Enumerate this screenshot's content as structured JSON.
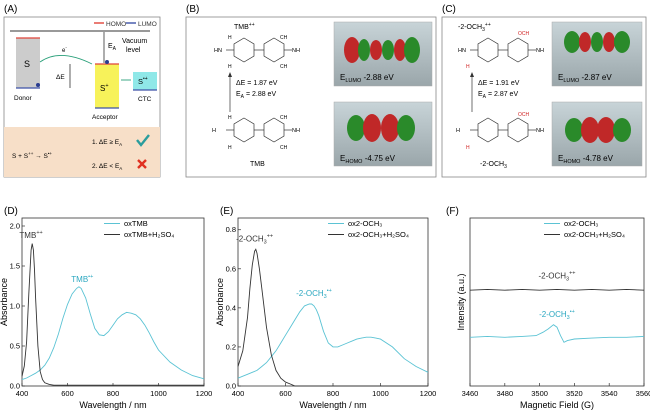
{
  "panels": {
    "A": {
      "label": "(A)",
      "legend": {
        "homo": "HOMO",
        "lumo": "LUMO"
      },
      "colors": {
        "homo": "#e0443a",
        "lumo": "#3d52a8",
        "s_fill": "#cccccc",
        "splus_fill": "#f7f25a",
        "ctc_fill": "#8fe8e8",
        "box_fill": "#f7dfc8",
        "check": "#2a9d9d",
        "cross": "#e03020"
      },
      "ea": "E",
      "ea_sub": "A",
      "vacuum": "Vacuum",
      "level": "level",
      "s": "S",
      "splus": "S",
      "splus_sup": "+",
      "de": "ΔE",
      "e_minus": "e",
      "sdot": "S",
      "sdot_sup": "•+",
      "ctc": "CTC",
      "donor": "Donor",
      "acceptor": "Acceptor",
      "rule1": "1. ΔE ≥ E",
      "rule1_sub": "A",
      "rule2": "2. ΔE < E",
      "rule2_sub": "A",
      "eq_left": "S + S",
      "eq_left_sup": "++",
      "eq_right": "S",
      "eq_right_sup": "•+"
    },
    "B": {
      "label": "(B)",
      "top_mol": "TMB",
      "top_mol_sup": "++",
      "bottom_mol": "TMB",
      "de": "ΔE = 1.87 eV",
      "ea": "E",
      "ea_sub": "A",
      "ea_val": " = 2.88 eV",
      "lumo_e": "E",
      "lumo_sub": "LUMO",
      "lumo_val": " -2.88 eV",
      "homo_e": "E",
      "homo_sub": "HOMO",
      "homo_val": " -4.75 eV",
      "groups": {
        "ch3": "CH",
        "h3c": "H",
        "nh": "NH",
        "nh2": "NH",
        "hn": "HN",
        "h2n": "H"
      }
    },
    "C": {
      "label": "(C)",
      "top_mol": "-2-OCH",
      "top_mol_sup": "++",
      "bottom_mol": "-2-OCH",
      "de": "ΔE = 1.91 eV",
      "ea": "E",
      "ea_sub": "A",
      "ea_val": " = 2.87 eV",
      "lumo_e": "E",
      "lumo_sub": "LUMO",
      "lumo_val": " -2.87 eV",
      "homo_e": "E",
      "homo_sub": "HOMO",
      "homo_val": " -4.78 eV",
      "groups": {
        "och3": "OCH",
        "h3co": "H",
        "ch3": "CH",
        "nh": "NH",
        "nh2": "NH",
        "hn": "HN",
        "h2n": "H"
      }
    }
  },
  "chart_data": [
    {
      "panel": "(D)",
      "type": "line",
      "xlabel": "Wavelength / nm",
      "ylabel": "Absorbance",
      "xlim": [
        400,
        1200
      ],
      "ylim": [
        0,
        2.1
      ],
      "xticks": [
        400,
        600,
        800,
        1000,
        1200
      ],
      "yticks": [
        0.0,
        0.5,
        1.0,
        1.5,
        2.0
      ],
      "ytick_labels": [
        "0.0",
        "0.5",
        "1.0",
        "1.5",
        "2.0"
      ],
      "legend": "top-right",
      "series": [
        {
          "name": "oxTMB",
          "color": "#5bc3d4",
          "x": [
            400,
            420,
            440,
            460,
            480,
            500,
            520,
            540,
            560,
            580,
            600,
            620,
            640,
            650,
            660,
            680,
            700,
            720,
            740,
            760,
            780,
            800,
            820,
            840,
            860,
            880,
            900,
            920,
            940,
            960,
            980,
            1000,
            1050,
            1100,
            1150,
            1200
          ],
          "y": [
            0.08,
            0.1,
            0.13,
            0.16,
            0.2,
            0.26,
            0.35,
            0.48,
            0.65,
            0.85,
            1.02,
            1.15,
            1.22,
            1.24,
            1.22,
            1.1,
            0.9,
            0.72,
            0.64,
            0.63,
            0.68,
            0.76,
            0.84,
            0.89,
            0.92,
            0.91,
            0.89,
            0.84,
            0.76,
            0.66,
            0.55,
            0.45,
            0.3,
            0.2,
            0.13,
            0.09
          ]
        },
        {
          "name": "oxTMB+H₂SO₄",
          "color": "#333333",
          "x": [
            400,
            410,
            420,
            430,
            440,
            445,
            450,
            455,
            460,
            470,
            480,
            490,
            500,
            520,
            540,
            600,
            700,
            800,
            1000,
            1200
          ],
          "y": [
            0.12,
            0.25,
            0.55,
            1.15,
            1.7,
            1.78,
            1.7,
            1.45,
            1.1,
            0.5,
            0.18,
            0.08,
            0.04,
            0.02,
            0.01,
            0.01,
            0.01,
            0.01,
            0.01,
            0.01
          ]
        }
      ],
      "annotations": [
        {
          "text": "TMB",
          "sup": "++",
          "color": "#333333"
        },
        {
          "text": "TMB",
          "sup": "•+",
          "color": "#2aa7c0"
        }
      ]
    },
    {
      "panel": "(E)",
      "type": "line",
      "xlabel": "Wavelength / nm",
      "ylabel": "Absorbance",
      "xlim": [
        400,
        1200
      ],
      "ylim": [
        0,
        0.86
      ],
      "xticks": [
        400,
        600,
        800,
        1000,
        1200
      ],
      "yticks": [
        0.0,
        0.2,
        0.4,
        0.6,
        0.8
      ],
      "ytick_labels": [
        "0.0",
        "0.2",
        "0.4",
        "0.6",
        "0.8"
      ],
      "legend": "top-right",
      "series": [
        {
          "name": "ox2-OCH₃",
          "color": "#5bc3d4",
          "x": [
            400,
            420,
            440,
            460,
            480,
            500,
            520,
            540,
            560,
            580,
            600,
            620,
            640,
            660,
            680,
            700,
            710,
            720,
            730,
            740,
            760,
            780,
            800,
            820,
            840,
            860,
            880,
            900,
            920,
            940,
            960,
            980,
            1000,
            1050,
            1100,
            1150,
            1200
          ],
          "y": [
            0.04,
            0.05,
            0.06,
            0.07,
            0.08,
            0.1,
            0.12,
            0.15,
            0.18,
            0.22,
            0.26,
            0.3,
            0.34,
            0.38,
            0.41,
            0.42,
            0.42,
            0.41,
            0.39,
            0.36,
            0.28,
            0.22,
            0.2,
            0.2,
            0.21,
            0.22,
            0.23,
            0.24,
            0.245,
            0.25,
            0.25,
            0.245,
            0.24,
            0.2,
            0.14,
            0.1,
            0.07
          ]
        },
        {
          "name": "ox2-OCH₃+H₂SO₄",
          "color": "#333333",
          "x": [
            400,
            420,
            440,
            450,
            460,
            470,
            475,
            480,
            490,
            500,
            520,
            540,
            560,
            580,
            600,
            620,
            640,
            660,
            700,
            800,
            1000,
            1200
          ],
          "y": [
            0.1,
            0.18,
            0.35,
            0.5,
            0.62,
            0.69,
            0.7,
            0.68,
            0.6,
            0.5,
            0.3,
            0.16,
            0.08,
            0.04,
            0.02,
            0.01,
            0.0,
            0.0,
            0.0,
            0.0,
            0.0,
            0.0
          ]
        }
      ],
      "annotations": [
        {
          "text": "-2-OCH",
          "sub": "3",
          "sup": "++",
          "color": "#333333"
        },
        {
          "text": "-2-OCH",
          "sub": "3",
          "sup": "•+",
          "color": "#2aa7c0"
        }
      ]
    },
    {
      "panel": "(F)",
      "type": "line",
      "xlabel": "Magnetic Field (G)",
      "ylabel": "Intensity (a.u.)",
      "xlim": [
        3460,
        3560
      ],
      "ylim": [
        -1,
        1
      ],
      "xticks": [
        3460,
        3480,
        3500,
        3520,
        3540,
        3560
      ],
      "yticks": [],
      "legend": "top-right",
      "series": [
        {
          "name": "ox2-OCH₃",
          "color": "#5bc3d4",
          "x": [
            3460,
            3470,
            3480,
            3490,
            3498,
            3502,
            3505,
            3508,
            3510,
            3512,
            3514,
            3516,
            3520,
            3530,
            3540,
            3550,
            3560
          ],
          "y": [
            -0.42,
            -0.41,
            -0.42,
            -0.41,
            -0.4,
            -0.36,
            -0.32,
            -0.27,
            -0.3,
            -0.4,
            -0.48,
            -0.46,
            -0.44,
            -0.43,
            -0.42,
            -0.42,
            -0.41
          ]
        },
        {
          "name": "ox2-OCH₃+H₂SO₄",
          "color": "#333333",
          "x": [
            3460,
            3470,
            3480,
            3490,
            3500,
            3510,
            3520,
            3530,
            3540,
            3550,
            3560
          ],
          "y": [
            0.14,
            0.15,
            0.14,
            0.15,
            0.14,
            0.15,
            0.14,
            0.15,
            0.14,
            0.15,
            0.14
          ]
        }
      ],
      "annotations": [
        {
          "text": "-2-OCH",
          "sub": "3",
          "sup": "++",
          "color": "#333333"
        },
        {
          "text": "-2-OCH",
          "sub": "3",
          "sup": "•+",
          "color": "#2aa7c0"
        }
      ]
    }
  ]
}
